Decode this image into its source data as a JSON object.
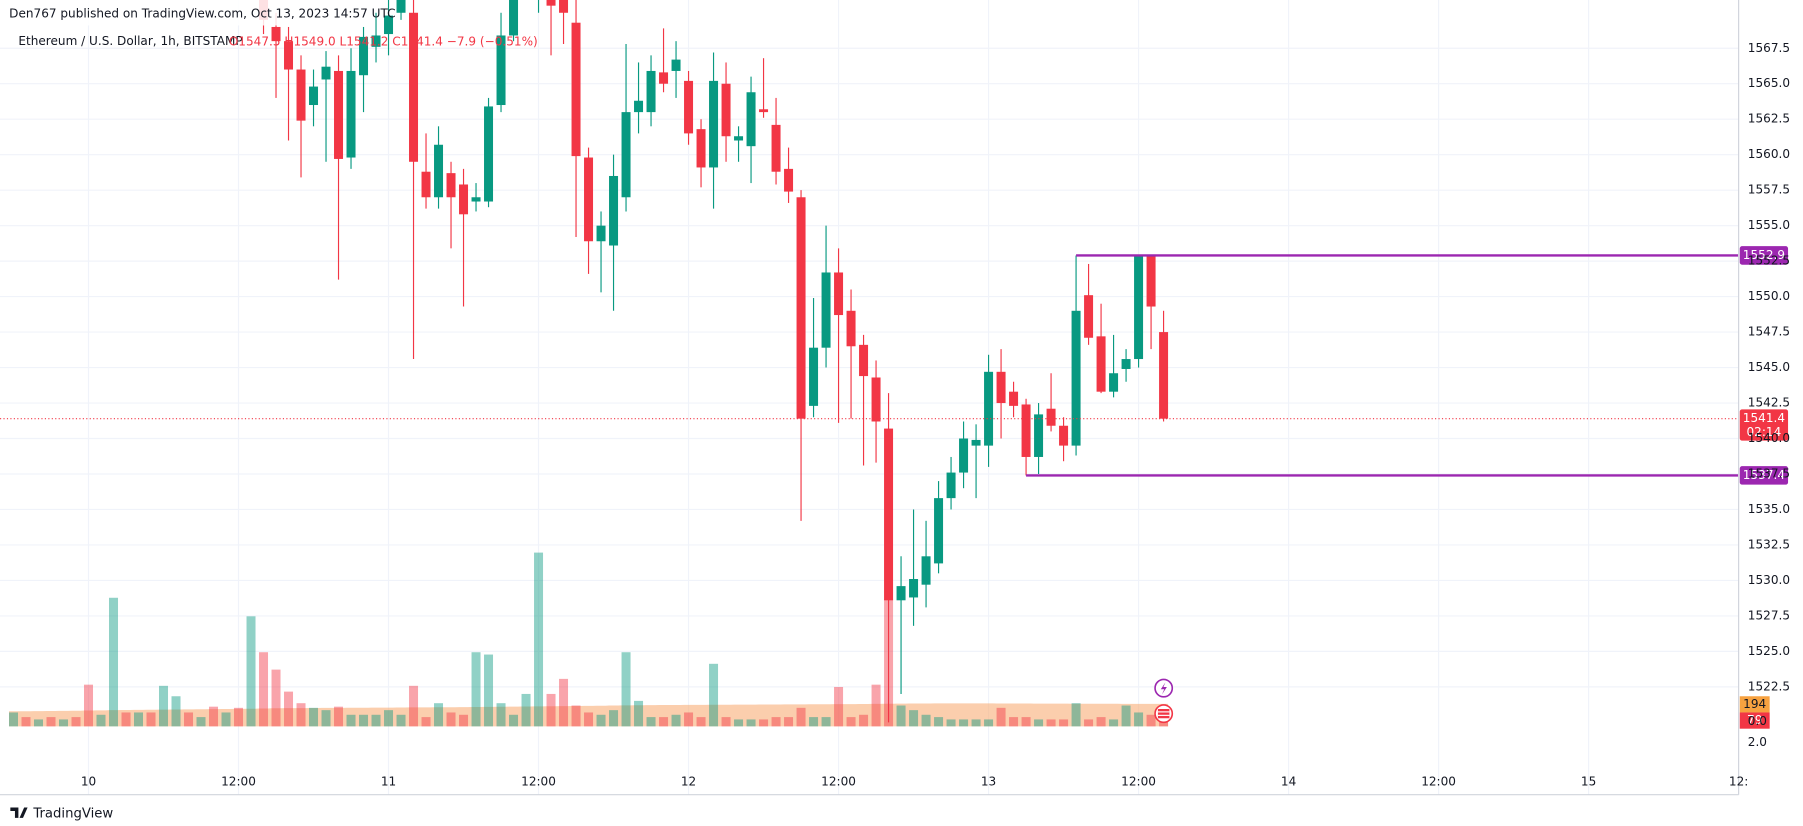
{
  "header": {
    "published": "Den767 published on TradingView.com, Oct 13, 2023 14:57 UTC"
  },
  "footer": {
    "brand": "TradingView"
  },
  "chart_data": {
    "type": "candlestick",
    "title": "Ethereum / U.S. Dollar, 1h, BITSTAMP",
    "ohlc_legend": [
      "O1547.5",
      "H1549.0",
      "L1541.2",
      "C1541.4",
      "−7.9 (−0.51%)"
    ],
    "x": [
      -6,
      -5,
      -4,
      -3,
      -2,
      -1,
      0,
      1,
      2,
      3,
      4,
      5,
      6,
      7,
      8,
      9,
      10,
      11,
      12,
      13,
      14,
      15,
      16,
      17,
      18,
      19,
      20,
      21,
      22,
      23,
      24,
      25,
      26,
      27,
      28,
      29,
      30,
      31,
      32,
      33,
      34,
      35,
      36,
      37,
      38,
      39,
      40,
      41,
      42,
      43,
      44,
      45,
      46,
      47,
      48,
      49,
      50,
      51,
      52,
      53,
      54,
      55,
      56,
      57,
      58,
      59,
      60,
      61,
      62,
      63,
      64,
      65,
      66,
      67,
      68,
      69,
      70,
      71,
      72,
      73,
      74,
      75,
      76,
      77,
      78,
      79,
      80,
      81,
      82,
      83,
      84,
      85,
      86
    ],
    "open": [
      null,
      null,
      null,
      null,
      null,
      null,
      null,
      null,
      null,
      null,
      null,
      null,
      null,
      null,
      null,
      null,
      null,
      null,
      null,
      null,
      1571.5,
      1569,
      1568,
      1566,
      1563.5,
      1565.3,
      1565.9,
      1559.8,
      1565.6,
      1567.6,
      1568.5,
      1570,
      1570,
      1558.8,
      1557,
      1558.7,
      1557.9,
      1556.7,
      1556.7,
      1563.5,
      1568.4,
      1572,
      1573,
      1572,
      1571,
      1569.3,
      1559.8,
      1553.9,
      1553.6,
      1557,
      1563,
      1563,
      1565.8,
      1565.9,
      1565.2,
      1561.8,
      1559.1,
      1565,
      1561,
      1560.6,
      1563.2,
      1562.1,
      1559,
      1557,
      1542.3,
      1546.4,
      1551.7,
      1549,
      1546.6,
      1544.3,
      1540.7,
      1528.6,
      1528.8,
      1529.7,
      1531.2,
      1535.8,
      1537.6,
      1539.5,
      1539.5,
      1544.7,
      1543.3,
      1542.4,
      1538.7,
      1542.1,
      1540.9,
      1539.5,
      1550.1,
      1547.2,
      1543.3,
      1544.9,
      1545.6,
      1552.9,
      1547.5
    ],
    "high": [
      null,
      null,
      null,
      null,
      null,
      null,
      null,
      null,
      null,
      null,
      null,
      null,
      null,
      null,
      null,
      null,
      null,
      null,
      null,
      null,
      1572,
      1570,
      1569,
      1567,
      1566,
      1567.3,
      1567,
      1567.5,
      1569,
      1570,
      1571,
      1573,
      1571,
      1561.5,
      1562,
      1559.5,
      1559,
      1558,
      1564,
      1570,
      1573,
      1574,
      1575,
      1574,
      1572,
      1571,
      1560.5,
      1556,
      1560,
      1567.8,
      1566.5,
      1567,
      1568.9,
      1568,
      1565.9,
      1562.5,
      1567.2,
      1566.5,
      1562,
      1565.5,
      1566.8,
      1564,
      1560.5,
      1557.5,
      1549.9,
      1555,
      1553.4,
      1550.5,
      1547.3,
      1545.5,
      1543.2,
      1531.7,
      1535,
      1534.2,
      1537,
      1538.7,
      1541.2,
      1541,
      1545.9,
      1546.3,
      1544,
      1542.8,
      1542.5,
      1544.6,
      1541.5,
      1552.9,
      1552.3,
      1549.5,
      1547.3,
      1546.3,
      1552.9,
      1552.9,
      1549
    ],
    "low": [
      null,
      null,
      null,
      null,
      null,
      null,
      null,
      null,
      null,
      null,
      null,
      null,
      null,
      null,
      null,
      null,
      null,
      null,
      null,
      null,
      1568.5,
      1564,
      1561,
      1558.4,
      1562,
      1559.5,
      1551.2,
      1559,
      1563,
      1566.5,
      1567,
      1569.5,
      1545.6,
      1556.2,
      1556.2,
      1553.4,
      1549.3,
      1556,
      1556.3,
      1563,
      1568,
      1571,
      1570,
      1567,
      1567.8,
      1554.2,
      1551.6,
      1550.3,
      1549,
      1556,
      1561.5,
      1562,
      1564.4,
      1564,
      1560.7,
      1557.7,
      1556.2,
      1559.5,
      1559.5,
      1558,
      1562.6,
      1557.9,
      1556.6,
      1534.2,
      1541.5,
      1545,
      1541.1,
      1541.4,
      1538.1,
      1538.3,
      1520,
      1522,
      1526.8,
      1528.1,
      1530.5,
      1535,
      1536.5,
      1535.8,
      1538,
      1540,
      1541.5,
      1537.4,
      1537.5,
      1540.5,
      1538.4,
      1538.8,
      1546.6,
      1543.2,
      1542.9,
      1544,
      1545,
      1546.3,
      1541.2
    ],
    "close": [
      null,
      null,
      null,
      null,
      null,
      null,
      null,
      null,
      null,
      null,
      null,
      null,
      null,
      null,
      null,
      null,
      null,
      null,
      null,
      null,
      1569.5,
      1568,
      1566,
      1562.4,
      1564.8,
      1566.2,
      1559.7,
      1565.9,
      1568.3,
      1568.4,
      1569.8,
      1572,
      1559.5,
      1557,
      1560.7,
      1557,
      1555.8,
      1557,
      1563.4,
      1568.4,
      1572,
      1573,
      1574,
      1570.5,
      1570,
      1559.9,
      1553.9,
      1555,
      1558.5,
      1563,
      1563.8,
      1565.9,
      1565,
      1566.7,
      1561.5,
      1559.1,
      1565.2,
      1561.3,
      1561.3,
      1564.4,
      1563,
      1558.8,
      1557.4,
      1541.4,
      1546.4,
      1551.7,
      1548.7,
      1546.5,
      1544.4,
      1541.2,
      1528.6,
      1529.6,
      1530.1,
      1531.7,
      1535.8,
      1537.6,
      1540,
      1539.9,
      1544.7,
      1542.5,
      1542.3,
      1538.7,
      1541.7,
      1540.9,
      1539.5,
      1549,
      1547.1,
      1543.3,
      1544.6,
      1545.6,
      1552.9,
      1549.3,
      1541.4
    ],
    "up_color": "#089981",
    "down_color": "#f23645",
    "volume": {
      "values": [
        120,
        80,
        60,
        80,
        60,
        80,
        360,
        100,
        1110,
        120,
        120,
        120,
        350,
        260,
        120,
        80,
        170,
        120,
        160,
        950,
        640,
        490,
        300,
        200,
        160,
        140,
        170,
        100,
        100,
        100,
        140,
        100,
        350,
        80,
        200,
        120,
        100,
        640,
        620,
        200,
        100,
        280,
        1500,
        280,
        410,
        180,
        120,
        100,
        140,
        640,
        220,
        80,
        80,
        100,
        120,
        80,
        540,
        80,
        60,
        60,
        60,
        80,
        80,
        160,
        80,
        80,
        340,
        80,
        100,
        360,
        1100,
        180,
        140,
        100,
        80,
        60,
        60,
        60,
        60,
        160,
        80,
        80,
        60,
        60,
        60,
        200,
        60,
        80,
        60,
        180,
        120,
        100,
        79
      ],
      "up": [
        true,
        false,
        true,
        false,
        true,
        false,
        false,
        true,
        true,
        false,
        true,
        false,
        true,
        true,
        false,
        true,
        false,
        true,
        false,
        true,
        false,
        false,
        false,
        false,
        true,
        true,
        false,
        true,
        true,
        true,
        true,
        true,
        false,
        false,
        true,
        false,
        false,
        true,
        true,
        true,
        true,
        true,
        true,
        false,
        false,
        false,
        false,
        true,
        true,
        true,
        true,
        true,
        false,
        true,
        false,
        false,
        true,
        false,
        true,
        true,
        false,
        false,
        false,
        false,
        true,
        true,
        false,
        false,
        false,
        false,
        false,
        true,
        true,
        true,
        true,
        true,
        true,
        true,
        true,
        false,
        false,
        false,
        true,
        false,
        false,
        true,
        false,
        false,
        true,
        true,
        true,
        false,
        false
      ],
      "ma": [
        130,
        131,
        132,
        133,
        134,
        135,
        137,
        138,
        140,
        141,
        142,
        143,
        145,
        146,
        147,
        148,
        149,
        150,
        151,
        152,
        154,
        156,
        157,
        158,
        159,
        160,
        160,
        161,
        161,
        162,
        162,
        163,
        164,
        164,
        165,
        165,
        166,
        167,
        168,
        169,
        170,
        172,
        173,
        174,
        175,
        176,
        177,
        178,
        180,
        181,
        182,
        183,
        184,
        185,
        186,
        186,
        187,
        187,
        188,
        188,
        189,
        189,
        190,
        190,
        191,
        191,
        192,
        192,
        193,
        194,
        195,
        196,
        197,
        197,
        198,
        198,
        198,
        198,
        198,
        197,
        197,
        197,
        196,
        196,
        196,
        195,
        195,
        195,
        195,
        194,
        194,
        194,
        194
      ],
      "ma_color": "#f7a66a"
    },
    "countdown": "02:14",
    "volume_axis_labels": [
      "0.0",
      "2.0"
    ],
    "levels": [
      {
        "value": 1552.9,
        "from": 79,
        "color": "#9c27b0"
      },
      {
        "value": 1537.4,
        "from": 75,
        "color": "#9c27b0"
      }
    ],
    "xlim": [
      -7.08,
      132.0
    ],
    "xticks": [
      {
        "value": 0,
        "label": "10"
      },
      {
        "value": 12,
        "label": "12:00"
      },
      {
        "value": 24,
        "label": "11"
      },
      {
        "value": 36,
        "label": "12:00"
      },
      {
        "value": 48,
        "label": "12"
      },
      {
        "value": 60,
        "label": "12:00"
      },
      {
        "value": 72,
        "label": "13"
      },
      {
        "value": 84,
        "label": "12:00"
      },
      {
        "value": 96,
        "label": "14"
      },
      {
        "value": 108,
        "label": "12:00"
      },
      {
        "value": 120,
        "label": "15"
      },
      {
        "value": 132,
        "label": "12:"
      }
    ],
    "ylim": [
      1514.9,
      1570.9
    ],
    "yticks": [
      1522.5,
      {
        "value": 1525,
        "label": "1525.0"
      },
      1527.5,
      {
        "value": 1530,
        "label": "1530.0"
      },
      1532.5,
      {
        "value": 1535,
        "label": "1535.0"
      },
      1537.5,
      {
        "value": 1540,
        "label": "1540.0"
      },
      1542.5,
      {
        "value": 1545,
        "label": "1545.0"
      },
      1547.5,
      {
        "value": 1550,
        "label": "1550.0"
      },
      1552.5,
      {
        "value": 1555,
        "label": "1555.0"
      },
      1557.5,
      {
        "value": 1560,
        "label": "1560.0"
      },
      1562.5,
      {
        "value": 1565,
        "label": "1565.0"
      },
      1567.5
    ],
    "grid": true
  }
}
